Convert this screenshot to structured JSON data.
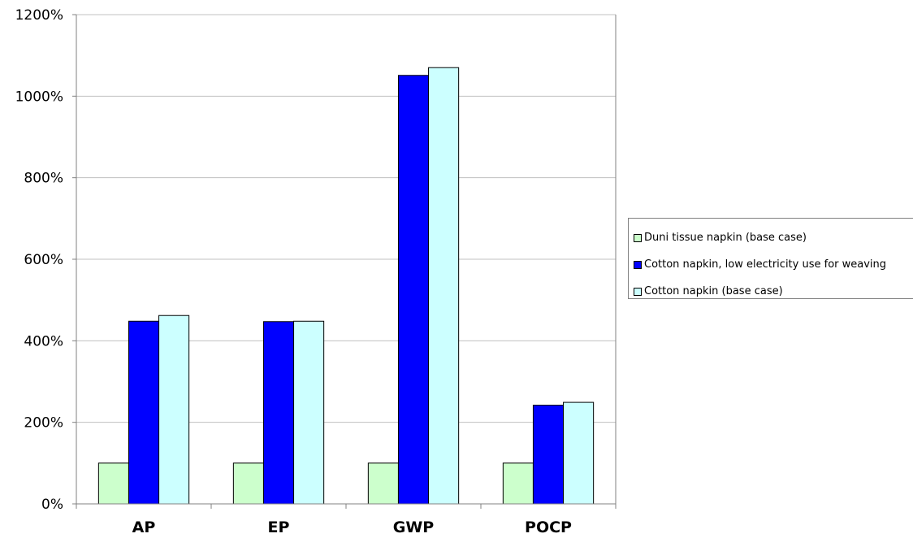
{
  "chart_data": {
    "type": "bar",
    "categories": [
      "AP",
      "EP",
      "GWP",
      "POCP"
    ],
    "series": [
      {
        "name": "Duni tissue napkin (base case)",
        "values": [
          100,
          100,
          100,
          100
        ],
        "color": "#ccffcc"
      },
      {
        "name": "Cotton napkin, low electricity use for weaving",
        "values": [
          448,
          447,
          1051,
          242
        ],
        "color": "#0000ff"
      },
      {
        "name": "Cotton napkin (base case)",
        "values": [
          462,
          448,
          1070,
          249
        ],
        "color": "#ccffff"
      }
    ],
    "yticks": [
      "0%",
      "200%",
      "400%",
      "600%",
      "800%",
      "1000%",
      "1200%"
    ],
    "ylim": [
      0,
      1200
    ],
    "title": "",
    "xlabel": "",
    "ylabel": "",
    "grid": true,
    "legend_position": "right"
  }
}
